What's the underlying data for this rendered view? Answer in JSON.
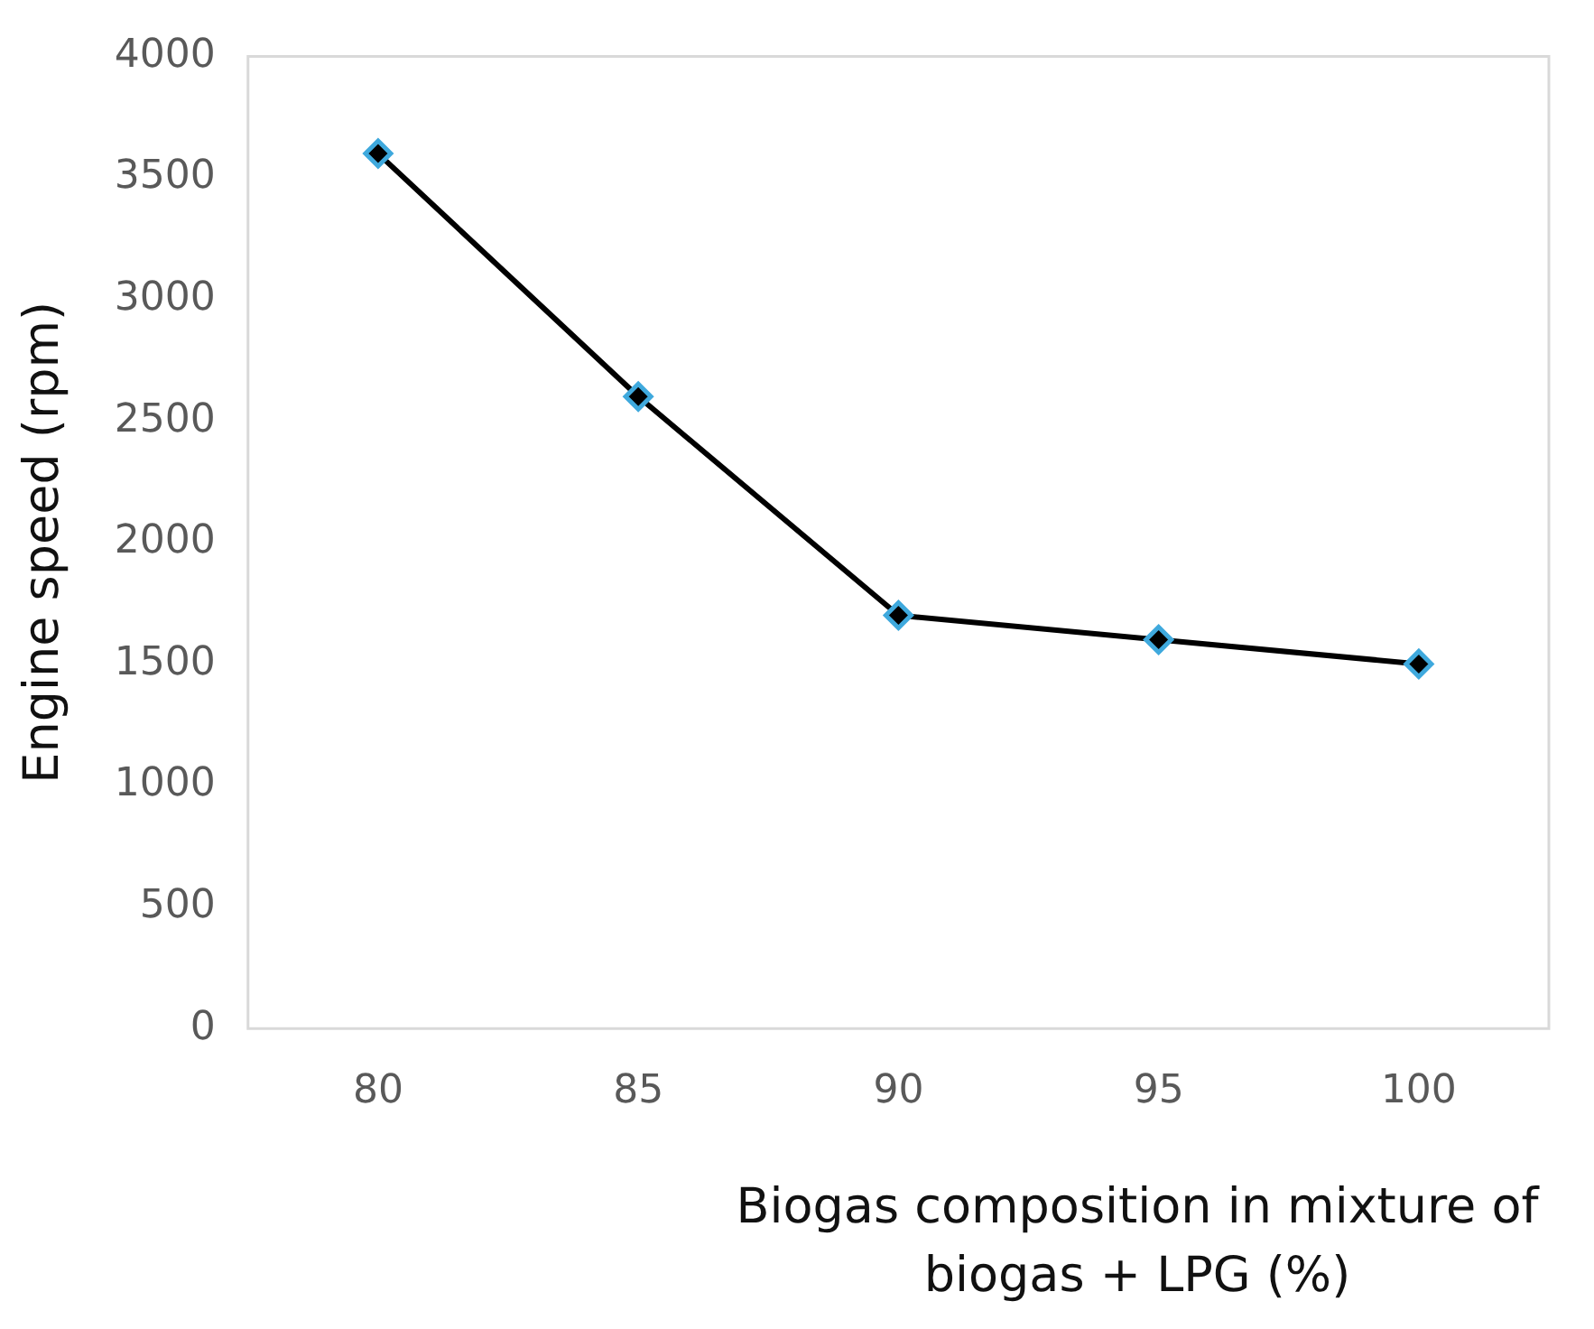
{
  "chart_data": {
    "type": "line",
    "xlabel": "Biogas composition in mixture of biogas + LPG (%)",
    "ylabel": "Engine speed (rpm)",
    "categories": [
      "80",
      "85",
      "90",
      "95",
      "100"
    ],
    "series": [
      {
        "color": "#000000",
        "values": [
          3600,
          2600,
          1700,
          1600,
          1500
        ]
      }
    ],
    "ylim": [
      0,
      4000
    ],
    "yticks": [
      0,
      500,
      1000,
      1500,
      2000,
      2500,
      3000,
      3500,
      4000
    ],
    "grid": false,
    "legend": false,
    "marker": "diamond",
    "line_style": "solid"
  }
}
